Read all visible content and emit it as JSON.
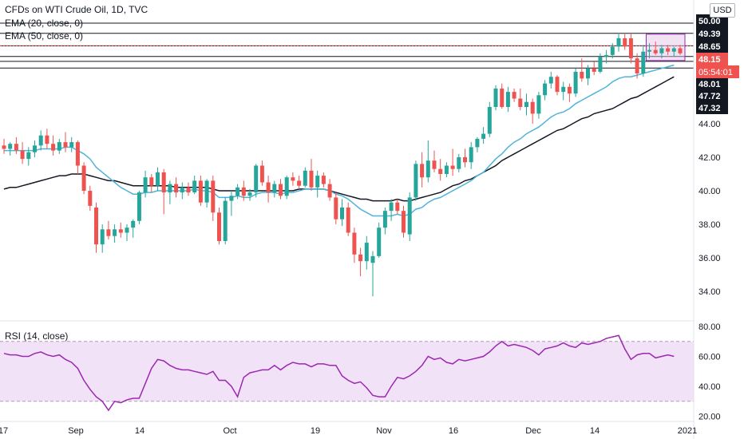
{
  "legend": {
    "title": "CFDs on WTI Crude Oil, 1D, TVC",
    "ema20": "EMA (20, close, 0)",
    "ema50": "EMA (50, close, 0)",
    "rsi": "RSI (14, close)"
  },
  "currency": "USD",
  "colors": {
    "up": "#26a69a",
    "down": "#ef5350",
    "ema20": "#4fb3d9",
    "ema50": "#131722",
    "rsi_line": "#9c27b0",
    "rsi_band": "#ecd8f6",
    "marker": "#ef5350",
    "countdown": "#ef5350"
  },
  "price_axis": {
    "ticks": [
      "34.00",
      "36.00",
      "38.00",
      "40.00",
      "42.00",
      "44.00"
    ],
    "highlight_labels": [
      "50.00",
      "49.39",
      "48.65",
      "48.01",
      "47.72",
      "47.32"
    ],
    "current_price": "48.15",
    "countdown": "05:54:01"
  },
  "rsi_axis": {
    "ticks": [
      "20.00",
      "40.00",
      "60.00",
      "80.00"
    ],
    "upper_band": 70,
    "lower_band": 30
  },
  "time_axis": {
    "labels": [
      "17",
      "Sep",
      "14",
      "Oct",
      "19",
      "Nov",
      "16",
      "Dec",
      "14",
      "2021"
    ]
  },
  "chart_data": {
    "type": "candlestick",
    "title": "CFDs on WTI Crude Oil, 1D, TVC",
    "ylim": [
      33,
      50.5
    ],
    "horizontal_levels": [
      50.0,
      49.39,
      48.65,
      48.01,
      47.72,
      47.32
    ],
    "candles": [
      {
        "o": 42.7,
        "h": 43.1,
        "l": 42.2,
        "c": 42.5
      },
      {
        "o": 42.5,
        "h": 42.9,
        "l": 42.1,
        "c": 42.8
      },
      {
        "o": 42.8,
        "h": 43.2,
        "l": 42.2,
        "c": 42.4
      },
      {
        "o": 42.4,
        "h": 42.9,
        "l": 41.6,
        "c": 41.9
      },
      {
        "o": 41.9,
        "h": 42.6,
        "l": 41.5,
        "c": 42.3
      },
      {
        "o": 42.3,
        "h": 43.0,
        "l": 42.0,
        "c": 42.7
      },
      {
        "o": 42.7,
        "h": 43.6,
        "l": 42.4,
        "c": 43.3
      },
      {
        "o": 43.3,
        "h": 43.7,
        "l": 42.5,
        "c": 42.8
      },
      {
        "o": 42.8,
        "h": 43.3,
        "l": 42.1,
        "c": 42.4
      },
      {
        "o": 42.4,
        "h": 43.1,
        "l": 42.2,
        "c": 42.9
      },
      {
        "o": 42.9,
        "h": 43.5,
        "l": 42.3,
        "c": 42.6
      },
      {
        "o": 42.6,
        "h": 43.2,
        "l": 42.3,
        "c": 42.9
      },
      {
        "o": 42.9,
        "h": 43.0,
        "l": 41.0,
        "c": 41.5
      },
      {
        "o": 41.5,
        "h": 41.7,
        "l": 39.8,
        "c": 40.0
      },
      {
        "o": 40.0,
        "h": 40.3,
        "l": 38.8,
        "c": 39.1
      },
      {
        "o": 39.0,
        "h": 39.3,
        "l": 36.3,
        "c": 36.8
      },
      {
        "o": 36.8,
        "h": 38.0,
        "l": 36.3,
        "c": 37.7
      },
      {
        "o": 37.7,
        "h": 38.2,
        "l": 37.1,
        "c": 37.3
      },
      {
        "o": 37.3,
        "h": 38.0,
        "l": 36.9,
        "c": 37.7
      },
      {
        "o": 37.7,
        "h": 38.1,
        "l": 37.2,
        "c": 37.5
      },
      {
        "o": 37.5,
        "h": 38.0,
        "l": 37.0,
        "c": 37.8
      },
      {
        "o": 37.8,
        "h": 38.3,
        "l": 37.2,
        "c": 38.2
      },
      {
        "o": 38.2,
        "h": 40.0,
        "l": 38.0,
        "c": 39.9
      },
      {
        "o": 39.9,
        "h": 41.2,
        "l": 39.6,
        "c": 40.8
      },
      {
        "o": 40.8,
        "h": 41.0,
        "l": 39.9,
        "c": 40.3
      },
      {
        "o": 40.3,
        "h": 41.4,
        "l": 40.0,
        "c": 41.1
      },
      {
        "o": 41.1,
        "h": 41.3,
        "l": 38.6,
        "c": 39.9
      },
      {
        "o": 39.9,
        "h": 40.6,
        "l": 39.2,
        "c": 40.4
      },
      {
        "o": 40.4,
        "h": 40.8,
        "l": 39.6,
        "c": 39.9
      },
      {
        "o": 39.9,
        "h": 40.5,
        "l": 39.5,
        "c": 40.2
      },
      {
        "o": 40.2,
        "h": 40.5,
        "l": 39.7,
        "c": 39.9
      },
      {
        "o": 39.9,
        "h": 40.9,
        "l": 39.8,
        "c": 40.6
      },
      {
        "o": 40.6,
        "h": 40.9,
        "l": 39.1,
        "c": 39.3
      },
      {
        "o": 39.3,
        "h": 40.7,
        "l": 39.0,
        "c": 40.6
      },
      {
        "o": 40.6,
        "h": 40.9,
        "l": 38.2,
        "c": 38.7
      },
      {
        "o": 38.7,
        "h": 39.0,
        "l": 36.8,
        "c": 37.0
      },
      {
        "o": 37.0,
        "h": 39.6,
        "l": 36.8,
        "c": 39.4
      },
      {
        "o": 39.4,
        "h": 40.0,
        "l": 38.5,
        "c": 39.7
      },
      {
        "o": 39.7,
        "h": 40.4,
        "l": 39.5,
        "c": 40.2
      },
      {
        "o": 40.2,
        "h": 40.6,
        "l": 39.4,
        "c": 39.7
      },
      {
        "o": 39.7,
        "h": 40.1,
        "l": 39.4,
        "c": 39.9
      },
      {
        "o": 39.9,
        "h": 41.6,
        "l": 39.6,
        "c": 41.5
      },
      {
        "o": 41.5,
        "h": 41.8,
        "l": 40.3,
        "c": 40.5
      },
      {
        "o": 40.5,
        "h": 40.9,
        "l": 39.3,
        "c": 39.9
      },
      {
        "o": 39.9,
        "h": 40.6,
        "l": 39.6,
        "c": 40.4
      },
      {
        "o": 40.4,
        "h": 40.7,
        "l": 39.5,
        "c": 39.7
      },
      {
        "o": 39.7,
        "h": 40.9,
        "l": 39.5,
        "c": 40.8
      },
      {
        "o": 40.8,
        "h": 41.1,
        "l": 40.3,
        "c": 40.6
      },
      {
        "o": 40.6,
        "h": 40.9,
        "l": 40.1,
        "c": 40.3
      },
      {
        "o": 40.3,
        "h": 41.4,
        "l": 40.2,
        "c": 41.2
      },
      {
        "o": 41.2,
        "h": 41.9,
        "l": 40.0,
        "c": 40.2
      },
      {
        "o": 40.2,
        "h": 41.2,
        "l": 39.6,
        "c": 40.9
      },
      {
        "o": 40.9,
        "h": 41.1,
        "l": 40.2,
        "c": 40.4
      },
      {
        "o": 40.4,
        "h": 40.7,
        "l": 39.4,
        "c": 39.6
      },
      {
        "o": 39.6,
        "h": 39.9,
        "l": 38.0,
        "c": 38.3
      },
      {
        "o": 38.3,
        "h": 39.5,
        "l": 37.9,
        "c": 39.0
      },
      {
        "o": 39.0,
        "h": 39.3,
        "l": 37.3,
        "c": 37.5
      },
      {
        "o": 37.5,
        "h": 37.8,
        "l": 35.7,
        "c": 36.2
      },
      {
        "o": 36.2,
        "h": 36.6,
        "l": 34.9,
        "c": 35.8
      },
      {
        "o": 35.8,
        "h": 37.3,
        "l": 35.3,
        "c": 36.9
      },
      {
        "o": 35.7,
        "h": 36.4,
        "l": 33.7,
        "c": 36.1
      },
      {
        "o": 36.1,
        "h": 38.1,
        "l": 36.0,
        "c": 37.8
      },
      {
        "o": 37.8,
        "h": 39.0,
        "l": 37.4,
        "c": 38.8
      },
      {
        "o": 38.8,
        "h": 39.5,
        "l": 38.2,
        "c": 39.3
      },
      {
        "o": 39.3,
        "h": 39.5,
        "l": 38.6,
        "c": 38.8
      },
      {
        "o": 38.8,
        "h": 39.1,
        "l": 37.2,
        "c": 37.5
      },
      {
        "o": 37.4,
        "h": 39.9,
        "l": 37.0,
        "c": 39.6
      },
      {
        "o": 39.6,
        "h": 41.8,
        "l": 39.4,
        "c": 41.6
      },
      {
        "o": 41.6,
        "h": 42.3,
        "l": 40.2,
        "c": 40.8
      },
      {
        "o": 40.8,
        "h": 43.0,
        "l": 40.5,
        "c": 41.8
      },
      {
        "o": 41.8,
        "h": 42.4,
        "l": 41.1,
        "c": 41.3
      },
      {
        "o": 41.3,
        "h": 41.9,
        "l": 40.6,
        "c": 41.0
      },
      {
        "o": 41.0,
        "h": 41.7,
        "l": 40.8,
        "c": 41.5
      },
      {
        "o": 41.5,
        "h": 42.5,
        "l": 40.9,
        "c": 41.3
      },
      {
        "o": 41.3,
        "h": 42.2,
        "l": 41.1,
        "c": 42.0
      },
      {
        "o": 42.0,
        "h": 42.5,
        "l": 41.4,
        "c": 41.7
      },
      {
        "o": 41.7,
        "h": 42.9,
        "l": 41.3,
        "c": 42.6
      },
      {
        "o": 42.6,
        "h": 43.2,
        "l": 42.3,
        "c": 43.1
      },
      {
        "o": 43.1,
        "h": 43.8,
        "l": 42.8,
        "c": 43.4
      },
      {
        "o": 43.4,
        "h": 45.3,
        "l": 43.2,
        "c": 45.0
      },
      {
        "o": 45.0,
        "h": 46.3,
        "l": 44.8,
        "c": 46.1
      },
      {
        "o": 46.1,
        "h": 46.4,
        "l": 44.9,
        "c": 45.0
      },
      {
        "o": 45.0,
        "h": 46.2,
        "l": 44.7,
        "c": 45.9
      },
      {
        "o": 45.9,
        "h": 46.1,
        "l": 45.3,
        "c": 45.5
      },
      {
        "o": 45.5,
        "h": 46.1,
        "l": 44.8,
        "c": 45.0
      },
      {
        "o": 45.0,
        "h": 45.8,
        "l": 44.5,
        "c": 45.3
      },
      {
        "o": 45.3,
        "h": 45.5,
        "l": 44.0,
        "c": 44.6
      },
      {
        "o": 44.6,
        "h": 45.9,
        "l": 44.3,
        "c": 45.7
      },
      {
        "o": 45.7,
        "h": 46.6,
        "l": 45.4,
        "c": 46.4
      },
      {
        "o": 46.4,
        "h": 47.1,
        "l": 46.1,
        "c": 46.8
      },
      {
        "o": 46.8,
        "h": 46.9,
        "l": 45.7,
        "c": 45.9
      },
      {
        "o": 45.9,
        "h": 46.5,
        "l": 45.4,
        "c": 46.2
      },
      {
        "o": 46.2,
        "h": 46.4,
        "l": 45.3,
        "c": 45.8
      },
      {
        "o": 45.8,
        "h": 47.3,
        "l": 45.6,
        "c": 47.1
      },
      {
        "o": 47.1,
        "h": 47.9,
        "l": 46.5,
        "c": 46.7
      },
      {
        "o": 46.7,
        "h": 47.5,
        "l": 46.3,
        "c": 47.3
      },
      {
        "o": 47.3,
        "h": 47.7,
        "l": 46.9,
        "c": 47.1
      },
      {
        "o": 47.1,
        "h": 48.2,
        "l": 47.0,
        "c": 48.0
      },
      {
        "o": 48.0,
        "h": 48.4,
        "l": 47.6,
        "c": 48.1
      },
      {
        "o": 48.1,
        "h": 48.8,
        "l": 47.9,
        "c": 48.6
      },
      {
        "o": 48.6,
        "h": 49.4,
        "l": 48.3,
        "c": 49.1
      },
      {
        "o": 49.1,
        "h": 49.4,
        "l": 48.4,
        "c": 48.6
      },
      {
        "o": 49.1,
        "h": 49.4,
        "l": 47.6,
        "c": 47.9
      },
      {
        "o": 47.9,
        "h": 48.2,
        "l": 46.7,
        "c": 47.0
      },
      {
        "o": 47.0,
        "h": 48.7,
        "l": 46.8,
        "c": 48.3
      },
      {
        "o": 48.3,
        "h": 48.8,
        "l": 47.9,
        "c": 48.4
      },
      {
        "o": 48.4,
        "h": 48.9,
        "l": 48.1,
        "c": 48.2
      },
      {
        "o": 48.2,
        "h": 48.7,
        "l": 47.9,
        "c": 48.5
      },
      {
        "o": 48.5,
        "h": 48.7,
        "l": 48.1,
        "c": 48.3
      },
      {
        "o": 48.3,
        "h": 48.6,
        "l": 48.0,
        "c": 48.5
      },
      {
        "o": 48.5,
        "h": 48.7,
        "l": 48.1,
        "c": 48.2
      }
    ],
    "ema20": [
      42.4,
      42.4,
      42.4,
      42.4,
      42.4,
      42.4,
      42.5,
      42.5,
      42.5,
      42.5,
      42.6,
      42.6,
      42.4,
      42.2,
      41.9,
      41.4,
      41.1,
      40.8,
      40.5,
      40.2,
      40.0,
      39.8,
      39.8,
      39.9,
      39.9,
      40.0,
      40.0,
      40.0,
      40.0,
      40.0,
      40.0,
      40.1,
      40.0,
      40.0,
      39.9,
      39.6,
      39.6,
      39.6,
      39.7,
      39.6,
      39.6,
      39.8,
      39.9,
      39.9,
      39.9,
      39.8,
      39.9,
      39.9,
      40.0,
      40.1,
      40.1,
      40.1,
      40.1,
      40.0,
      39.8,
      39.7,
      39.5,
      39.2,
      38.9,
      38.7,
      38.5,
      38.5,
      38.5,
      38.5,
      38.6,
      38.5,
      38.6,
      38.9,
      39.0,
      39.3,
      39.5,
      39.6,
      39.8,
      40.0,
      40.2,
      40.4,
      40.6,
      40.9,
      41.1,
      41.5,
      41.9,
      42.2,
      42.6,
      42.9,
      43.1,
      43.4,
      43.6,
      43.8,
      44.1,
      44.4,
      44.6,
      44.7,
      44.9,
      45.2,
      45.4,
      45.6,
      45.8,
      46.0,
      46.2,
      46.5,
      46.7,
      46.8,
      46.8,
      46.9,
      47.0,
      47.1,
      47.2,
      47.3,
      47.4,
      47.5
    ],
    "ema50": [
      40.1,
      40.2,
      40.2,
      40.3,
      40.4,
      40.5,
      40.6,
      40.7,
      40.8,
      40.9,
      40.9,
      41.0,
      41.0,
      41.0,
      40.9,
      40.8,
      40.7,
      40.6,
      40.6,
      40.5,
      40.4,
      40.3,
      40.3,
      40.3,
      40.3,
      40.3,
      40.3,
      40.3,
      40.2,
      40.2,
      40.2,
      40.2,
      40.2,
      40.2,
      40.1,
      40.0,
      40.0,
      40.0,
      40.0,
      40.0,
      40.0,
      40.0,
      40.0,
      40.0,
      40.0,
      40.0,
      40.0,
      40.0,
      40.1,
      40.1,
      40.1,
      40.1,
      40.1,
      40.0,
      39.9,
      39.8,
      39.7,
      39.6,
      39.5,
      39.5,
      39.4,
      39.4,
      39.4,
      39.4,
      39.5,
      39.4,
      39.4,
      39.5,
      39.6,
      39.7,
      39.8,
      39.9,
      40.1,
      40.3,
      40.4,
      40.6,
      40.7,
      40.9,
      41.1,
      41.3,
      41.5,
      41.8,
      42.0,
      42.2,
      42.4,
      42.6,
      42.8,
      43.0,
      43.2,
      43.4,
      43.6,
      43.7,
      43.9,
      44.1,
      44.3,
      44.4,
      44.6,
      44.7,
      44.8,
      44.9,
      45.1,
      45.3,
      45.5,
      45.6,
      45.8,
      46.0,
      46.2,
      46.4,
      46.6,
      46.8
    ],
    "rsi": [
      62,
      61,
      61,
      60,
      60,
      62,
      63,
      61,
      60,
      61,
      58,
      56,
      52,
      44,
      38,
      33,
      30,
      24,
      30,
      29,
      31,
      32,
      32,
      42,
      52,
      58,
      57,
      54,
      52,
      51,
      51,
      50,
      49,
      48,
      50,
      44,
      44,
      40,
      33,
      46,
      49,
      50,
      51,
      51,
      54,
      51,
      54,
      56,
      55,
      55,
      53,
      55,
      55,
      54,
      54,
      47,
      44,
      42,
      43,
      39,
      34,
      33,
      33,
      40,
      46,
      45,
      47,
      50,
      54,
      60,
      58,
      59,
      56,
      55,
      58,
      57,
      58,
      59,
      60,
      63,
      67,
      70,
      67,
      68,
      67,
      66,
      64,
      61,
      65,
      66,
      67,
      69,
      67,
      66,
      69,
      68,
      69,
      70,
      72,
      73,
      74,
      65,
      58,
      61,
      62,
      62,
      59,
      60,
      61,
      60
    ]
  }
}
